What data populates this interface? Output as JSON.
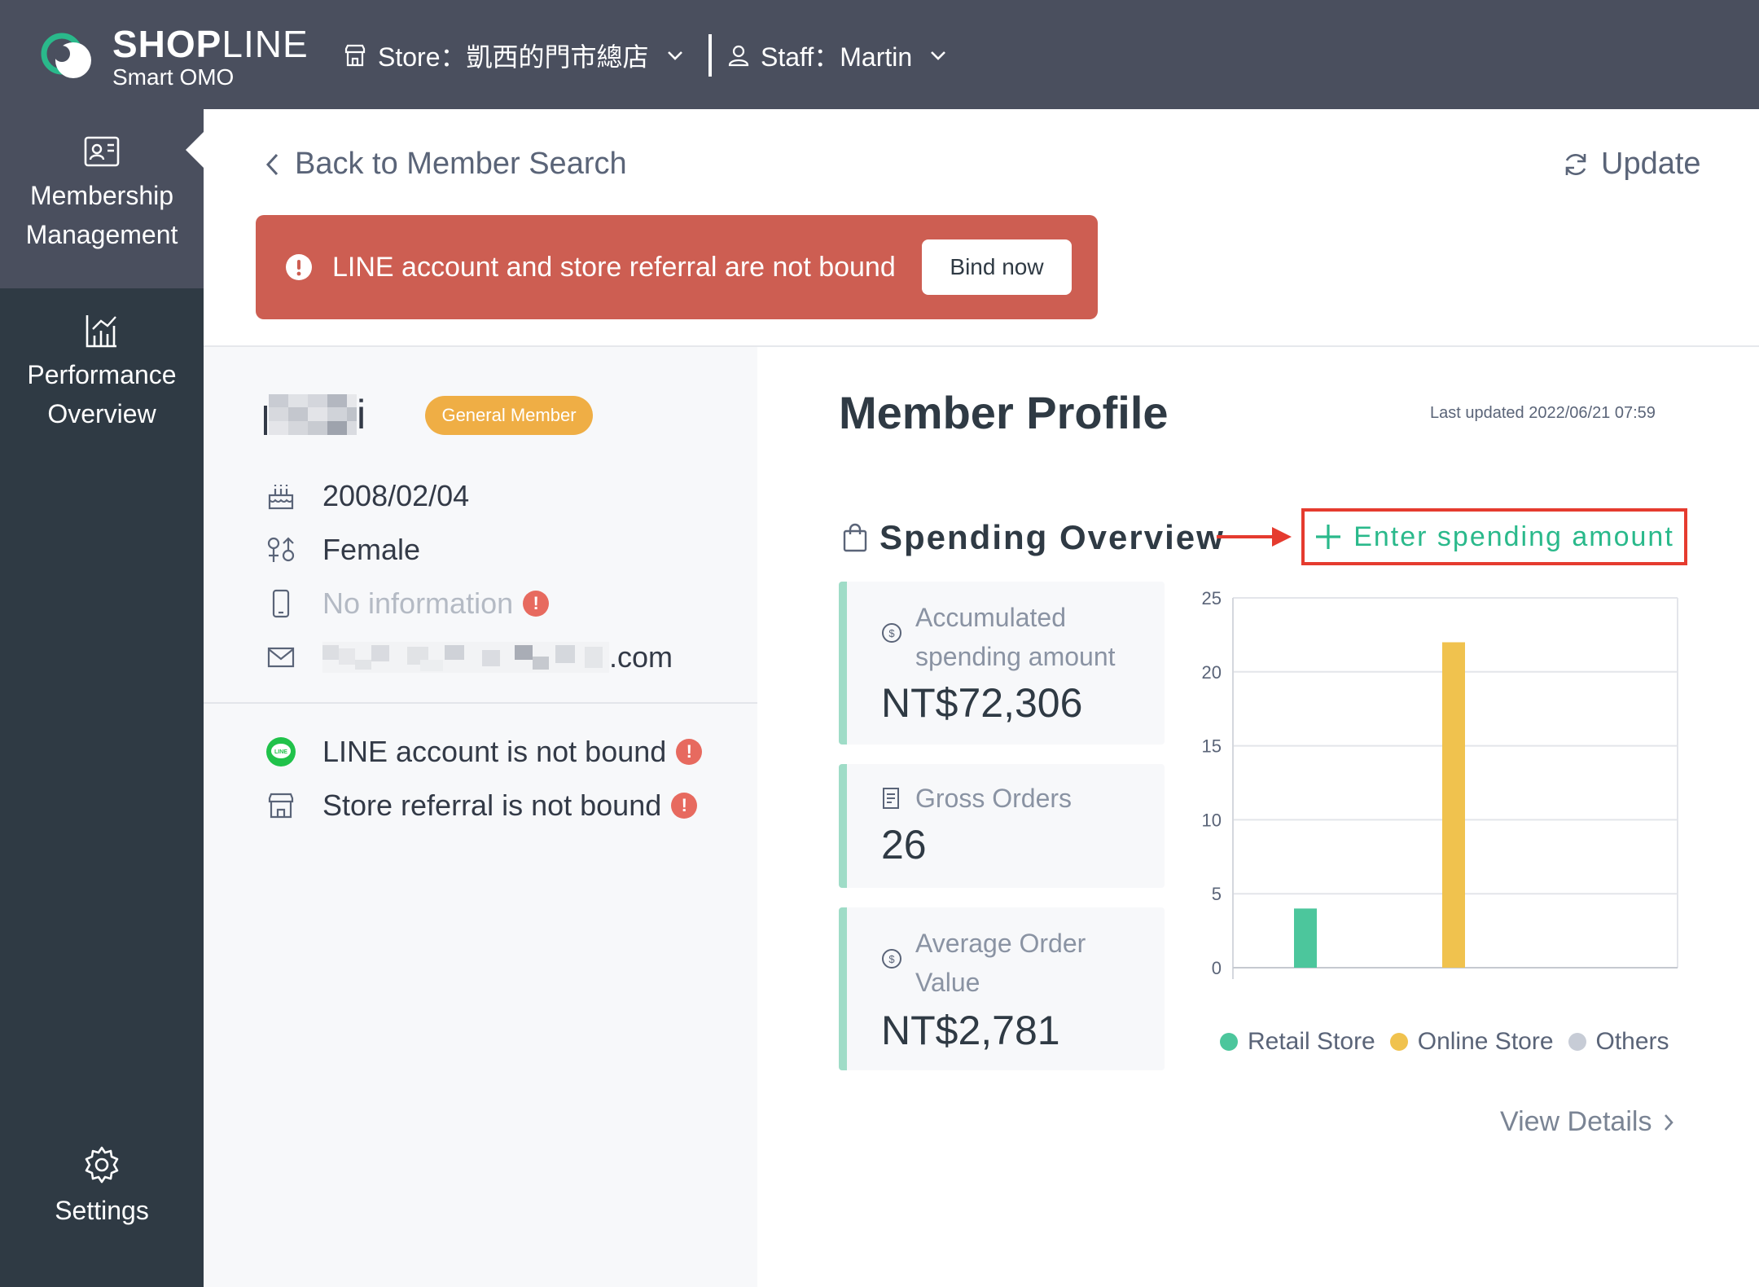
{
  "brand": {
    "name_bold": "SHOP",
    "name_rest": "LINE",
    "sub": "Smart OMO"
  },
  "header": {
    "store_label": "Store：凱西的門市總店",
    "staff_label": "Staff：Martin"
  },
  "sidebar": {
    "items": [
      {
        "label_line1": "Membership",
        "label_line2": "Management",
        "icon": "member-card-icon",
        "active": true
      },
      {
        "label_line1": "Performance",
        "label_line2": "Overview",
        "icon": "chart-icon",
        "active": false
      },
      {
        "label_line1": "Settings",
        "label_line2": "",
        "icon": "gear-icon",
        "active": false
      }
    ]
  },
  "nav": {
    "back": "Back to Member Search",
    "update": "Update"
  },
  "alert": {
    "message": "LINE account and store referral are not bound",
    "button": "Bind now"
  },
  "member": {
    "name_visible": "i",
    "tier": "General Member",
    "birthday": "2008/02/04",
    "gender": "Female",
    "phone": "No information",
    "email_suffix": ".com",
    "line_status": "LINE account is not bound",
    "store_referral_status": "Store referral is not bound"
  },
  "profile": {
    "title": "Member Profile",
    "last_updated": "Last updated 2022/06/21 07:59",
    "spending_title": "Spending Overview",
    "enter_spending": "Enter spending amount",
    "stats": [
      {
        "label": "Accumulated spending amount",
        "label_line1": "Accumulated",
        "label_line2": "spending amount",
        "value": "NT$72,306"
      },
      {
        "label": "Gross Orders",
        "value": "26"
      },
      {
        "label": "Average Order Value",
        "label_line1": "Average Order",
        "label_line2": "Value",
        "value": "NT$2,781"
      }
    ],
    "view_details": "View Details"
  },
  "colors": {
    "retail": "#4cc69c",
    "online": "#f0c24e",
    "others": "#c7ccd6",
    "accent_green": "#2ab98b",
    "alert_red": "#cd5e52"
  },
  "chart_data": {
    "type": "bar",
    "categories": [
      "Retail Store",
      "Online Store",
      "Others"
    ],
    "values": [
      4,
      22,
      0
    ],
    "title": "",
    "xlabel": "",
    "ylabel": "",
    "ylim": [
      0,
      25
    ],
    "yticks": [
      "0",
      "5",
      "10",
      "15",
      "20",
      "25"
    ],
    "legend": [
      "Retail Store",
      "Online Store",
      "Others"
    ],
    "grid": true
  }
}
